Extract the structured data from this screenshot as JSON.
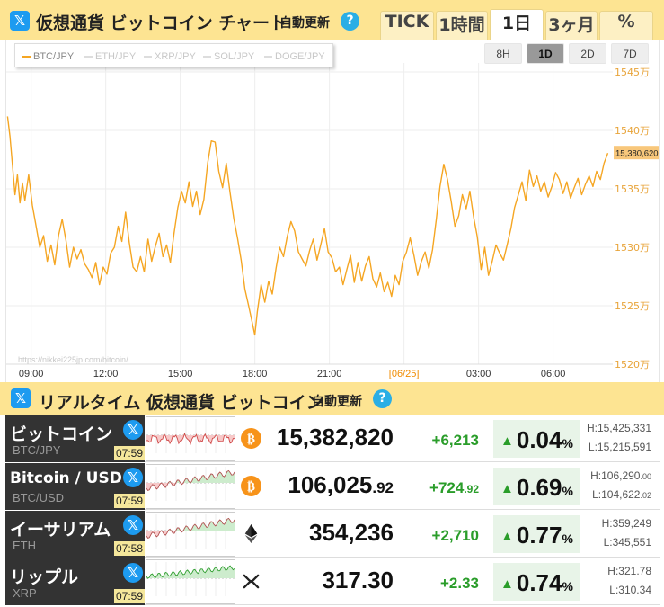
{
  "header": {
    "x_icon": "x-logo-icon",
    "title": "仮想通貨 ビットコイン チャート",
    "auto_update": "自動更新",
    "help": "?",
    "tabs": [
      {
        "label": "TICK",
        "active": false
      },
      {
        "label": "1時間",
        "active": false
      },
      {
        "label": "1日",
        "active": true
      },
      {
        "label": "3ヶ月",
        "active": false
      },
      {
        "label": "%",
        "active": false
      }
    ]
  },
  "chart": {
    "legend": [
      {
        "label": "BTC/JPY",
        "active": true
      },
      {
        "label": "ETH/JPY",
        "active": false
      },
      {
        "label": "XRP/JPY",
        "active": false
      },
      {
        "label": "SOL/JPY",
        "active": false
      },
      {
        "label": "DOGE/JPY",
        "active": false
      }
    ],
    "ranges": [
      {
        "label": "8H",
        "active": false
      },
      {
        "label": "1D",
        "active": true
      },
      {
        "label": "2D",
        "active": false
      },
      {
        "label": "7D",
        "active": false
      }
    ],
    "watermark": "https://nikkei225jp.com/bitcoin/",
    "current_label": "15,380,620"
  },
  "chart_data": {
    "type": "line",
    "series": [
      {
        "name": "BTC/JPY",
        "color": "#f5a623"
      }
    ],
    "y_ticks": [
      "1545万",
      "1540万",
      "1535万",
      "1530万",
      "1525万",
      "1520万"
    ],
    "y_tick_values": [
      15450000,
      15400000,
      15350000,
      15300000,
      15250000,
      15200000
    ],
    "ylim": [
      15200000,
      15450000
    ],
    "x_ticks": [
      "09:00",
      "12:00",
      "15:00",
      "18:00",
      "21:00",
      "[06/25]",
      "03:00",
      "06:00"
    ],
    "x_tick_hours": [
      0,
      3,
      6,
      9,
      12,
      15,
      18,
      21
    ],
    "xlim_hours": [
      -1,
      23.4
    ],
    "points": [
      [
        -0.95,
        15412000
      ],
      [
        -0.85,
        15395000
      ],
      [
        -0.75,
        15370000
      ],
      [
        -0.65,
        15345000
      ],
      [
        -0.55,
        15362000
      ],
      [
        -0.45,
        15338000
      ],
      [
        -0.35,
        15355000
      ],
      [
        -0.25,
        15340000
      ],
      [
        -0.1,
        15362000
      ],
      [
        0.05,
        15336000
      ],
      [
        0.2,
        15318000
      ],
      [
        0.35,
        15300000
      ],
      [
        0.5,
        15310000
      ],
      [
        0.65,
        15288000
      ],
      [
        0.8,
        15302000
      ],
      [
        0.95,
        15285000
      ],
      [
        1.1,
        15310000
      ],
      [
        1.25,
        15324000
      ],
      [
        1.4,
        15306000
      ],
      [
        1.55,
        15283000
      ],
      [
        1.7,
        15300000
      ],
      [
        1.85,
        15290000
      ],
      [
        2.0,
        15298000
      ],
      [
        2.15,
        15286000
      ],
      [
        2.3,
        15281000
      ],
      [
        2.45,
        15274000
      ],
      [
        2.6,
        15287000
      ],
      [
        2.75,
        15268000
      ],
      [
        2.9,
        15283000
      ],
      [
        3.05,
        15277000
      ],
      [
        3.2,
        15295000
      ],
      [
        3.35,
        15300000
      ],
      [
        3.5,
        15318000
      ],
      [
        3.65,
        15305000
      ],
      [
        3.8,
        15330000
      ],
      [
        3.95,
        15304000
      ],
      [
        4.1,
        15283000
      ],
      [
        4.25,
        15279000
      ],
      [
        4.4,
        15292000
      ],
      [
        4.55,
        15279000
      ],
      [
        4.7,
        15307000
      ],
      [
        4.85,
        15288000
      ],
      [
        5.0,
        15301000
      ],
      [
        5.15,
        15312000
      ],
      [
        5.3,
        15292000
      ],
      [
        5.45,
        15302000
      ],
      [
        5.6,
        15287000
      ],
      [
        5.75,
        15312000
      ],
      [
        5.9,
        15334000
      ],
      [
        6.05,
        15348000
      ],
      [
        6.2,
        15338000
      ],
      [
        6.35,
        15356000
      ],
      [
        6.5,
        15335000
      ],
      [
        6.65,
        15348000
      ],
      [
        6.8,
        15328000
      ],
      [
        6.95,
        15341000
      ],
      [
        7.1,
        15372000
      ],
      [
        7.25,
        15391000
      ],
      [
        7.4,
        15390000
      ],
      [
        7.55,
        15365000
      ],
      [
        7.7,
        15351000
      ],
      [
        7.85,
        15372000
      ],
      [
        8.0,
        15347000
      ],
      [
        8.15,
        15325000
      ],
      [
        8.3,
        15308000
      ],
      [
        8.45,
        15289000
      ],
      [
        8.6,
        15264000
      ],
      [
        8.75,
        15250000
      ],
      [
        8.9,
        15235000
      ],
      [
        9.0,
        15225000
      ],
      [
        9.1,
        15245000
      ],
      [
        9.25,
        15268000
      ],
      [
        9.4,
        15253000
      ],
      [
        9.55,
        15271000
      ],
      [
        9.7,
        15260000
      ],
      [
        9.85,
        15282000
      ],
      [
        10.0,
        15300000
      ],
      [
        10.15,
        15292000
      ],
      [
        10.3,
        15309000
      ],
      [
        10.45,
        15322000
      ],
      [
        10.6,
        15314000
      ],
      [
        10.75,
        15296000
      ],
      [
        10.9,
        15290000
      ],
      [
        11.05,
        15284000
      ],
      [
        11.2,
        15297000
      ],
      [
        11.35,
        15307000
      ],
      [
        11.5,
        15289000
      ],
      [
        11.65,
        15302000
      ],
      [
        11.8,
        15316000
      ],
      [
        11.95,
        15296000
      ],
      [
        12.1,
        15291000
      ],
      [
        12.25,
        15279000
      ],
      [
        12.4,
        15283000
      ],
      [
        12.55,
        15268000
      ],
      [
        12.7,
        15281000
      ],
      [
        12.85,
        15293000
      ],
      [
        13.0,
        15270000
      ],
      [
        13.15,
        15287000
      ],
      [
        13.3,
        15271000
      ],
      [
        13.45,
        15284000
      ],
      [
        13.6,
        15292000
      ],
      [
        13.75,
        15273000
      ],
      [
        13.9,
        15266000
      ],
      [
        14.05,
        15278000
      ],
      [
        14.2,
        15262000
      ],
      [
        14.35,
        15270000
      ],
      [
        14.5,
        15258000
      ],
      [
        14.65,
        15276000
      ],
      [
        14.8,
        15268000
      ],
      [
        14.95,
        15288000
      ],
      [
        15.1,
        15296000
      ],
      [
        15.25,
        15308000
      ],
      [
        15.4,
        15293000
      ],
      [
        15.55,
        15276000
      ],
      [
        15.7,
        15288000
      ],
      [
        15.85,
        15296000
      ],
      [
        16.0,
        15282000
      ],
      [
        16.15,
        15298000
      ],
      [
        16.3,
        15324000
      ],
      [
        16.45,
        15352000
      ],
      [
        16.6,
        15371000
      ],
      [
        16.75,
        15358000
      ],
      [
        16.9,
        15339000
      ],
      [
        17.05,
        15318000
      ],
      [
        17.2,
        15327000
      ],
      [
        17.35,
        15345000
      ],
      [
        17.5,
        15333000
      ],
      [
        17.65,
        15348000
      ],
      [
        17.8,
        15326000
      ],
      [
        17.95,
        15309000
      ],
      [
        18.1,
        15281000
      ],
      [
        18.25,
        15300000
      ],
      [
        18.4,
        15276000
      ],
      [
        18.55,
        15288000
      ],
      [
        18.7,
        15302000
      ],
      [
        18.85,
        15295000
      ],
      [
        19.0,
        15289000
      ],
      [
        19.15,
        15302000
      ],
      [
        19.3,
        15316000
      ],
      [
        19.45,
        15334000
      ],
      [
        19.6,
        15345000
      ],
      [
        19.75,
        15356000
      ],
      [
        19.9,
        15340000
      ],
      [
        20.05,
        15366000
      ],
      [
        20.2,
        15352000
      ],
      [
        20.35,
        15361000
      ],
      [
        20.5,
        15348000
      ],
      [
        20.65,
        15356000
      ],
      [
        20.8,
        15343000
      ],
      [
        20.95,
        15352000
      ],
      [
        21.1,
        15364000
      ],
      [
        21.25,
        15358000
      ],
      [
        21.4,
        15346000
      ],
      [
        21.55,
        15356000
      ],
      [
        21.7,
        15342000
      ],
      [
        21.85,
        15351000
      ],
      [
        22.0,
        15359000
      ],
      [
        22.15,
        15345000
      ],
      [
        22.3,
        15354000
      ],
      [
        22.45,
        15361000
      ],
      [
        22.6,
        15352000
      ],
      [
        22.75,
        15365000
      ],
      [
        22.9,
        15358000
      ],
      [
        23.05,
        15372000
      ],
      [
        23.2,
        15380620
      ]
    ]
  },
  "realtime": {
    "title": "リアルタイム 仮想通貨 ビットコイン",
    "auto_update": "自動更新",
    "help": "?",
    "rows": [
      {
        "name": "ビットコイン",
        "pair": "BTC/JPY",
        "time": "07:59",
        "icon": "bitcoin-icon",
        "price": "15,382,820",
        "price_dec": "",
        "change": "+6,213",
        "change_dec": "",
        "pct": "0.04",
        "pct_unit": "%",
        "high": "H:15,425,331",
        "high_dec": "",
        "low": "L:15,215,591",
        "low_dec": "",
        "spark_color": "red"
      },
      {
        "name": "Bitcoin / USD",
        "pair": "BTC/USD",
        "time": "07:59",
        "icon": "bitcoin-icon",
        "price": "106,025",
        "price_dec": ".92",
        "change": "+724",
        "change_dec": ".92",
        "pct": "0.69",
        "pct_unit": "%",
        "high": "H:106,290",
        "high_dec": ".00",
        "low": "L:104,622",
        "low_dec": ".02",
        "spark_color": "mixed"
      },
      {
        "name": "イーサリアム",
        "pair": "ETH",
        "time": "07:58",
        "icon": "ethereum-icon",
        "price": "354,236",
        "price_dec": "",
        "change": "+2,710",
        "change_dec": "",
        "pct": "0.77",
        "pct_unit": "%",
        "high": "H:359,249",
        "high_dec": "",
        "low": "L:345,551",
        "low_dec": "",
        "spark_color": "mixed"
      },
      {
        "name": "リップル",
        "pair": "XRP",
        "time": "07:59",
        "icon": "xrp-icon",
        "price": "317.30",
        "price_dec": "",
        "change": "+2.33",
        "change_dec": "",
        "pct": "0.74",
        "pct_unit": "%",
        "high": "H:321.78",
        "high_dec": "",
        "low": "L:310.34",
        "low_dec": "",
        "spark_color": "green"
      }
    ]
  }
}
